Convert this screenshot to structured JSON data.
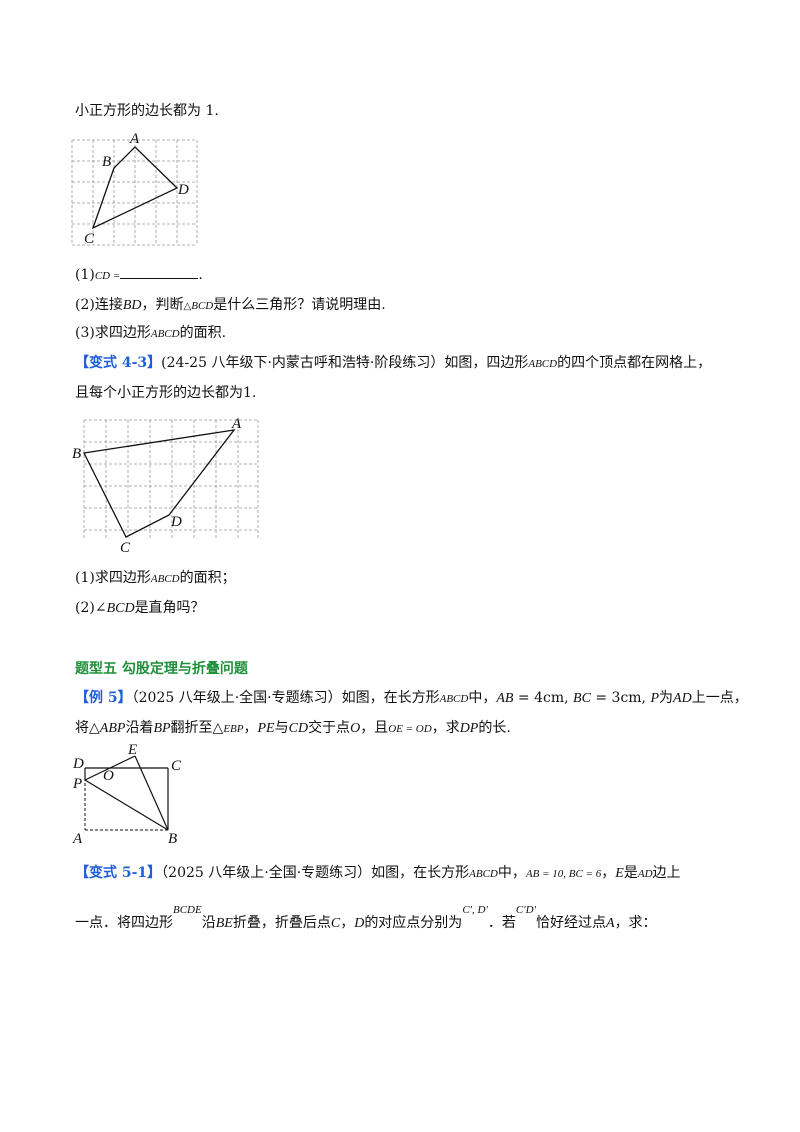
{
  "intro_line": "小正方形的边长都为 1.",
  "fig1": {
    "A": "A",
    "B": "B",
    "C": "C",
    "D": "D"
  },
  "q4_2": {
    "p1_prefix": "(1)",
    "p1_math": "CD =",
    "p1_end": ".",
    "p2_a": "(2)连接",
    "p2_math1": "BD",
    "p2_b": "，判断",
    "p2_tri": "△",
    "p2_math2": "BCD",
    "p2_c": "是什么三角形？请说明理由.",
    "p3_a": "(3)求四边形",
    "p3_math": "ABCD",
    "p3_b": "的面积."
  },
  "v43": {
    "tag": "【变式 4-3】",
    "source": "(24-25 八年级下·内蒙古呼和浩特·阶段练习）如图，四边形",
    "math": "ABCD",
    "rest": "的四个顶点都在网格上，",
    "line2": "且每个小正方形的边长都为1.",
    "fig": {
      "A": "A",
      "B": "B",
      "C": "C",
      "D": "D"
    },
    "q1_a": "(1)求四边形",
    "q1_math": "ABCD",
    "q1_b": "的面积；",
    "q2_a": "(2)∠",
    "q2_math": "BCD",
    "q2_b": "是直角吗？"
  },
  "section5": {
    "title": "题型五    勾股定理与折叠问题"
  },
  "ex5": {
    "tag": "【例 5】",
    "l1_a": "（2025 八年级上·全国·专题练习）如图，在长方形",
    "l1_m1": "ABCD",
    "l1_b": "中，",
    "l1_m2": "AB",
    "l1_m2b": " = 4cm, ",
    "l1_m3": "BC",
    "l1_m3b": " = 3cm, ",
    "l1_m4": "P",
    "l1_c": "为",
    "l1_m5": "AD",
    "l1_d": "上一点，",
    "l2_a": "将△",
    "l2_m1": "ABP",
    "l2_b": "沿着",
    "l2_m2": "BP",
    "l2_c": "翻折至△",
    "l2_m3": "EBP",
    "l2_d": "，",
    "l2_m4": "PE",
    "l2_e": "与",
    "l2_m5": "CD",
    "l2_f": "交于点",
    "l2_m6": "O",
    "l2_g": "，且",
    "l2_m7": "OE",
    "l2_m7b": " = ",
    "l2_m8": "OD",
    "l2_h": "，求",
    "l2_m9": "DP",
    "l2_i": "的长.",
    "fig": {
      "D": "D",
      "E": "E",
      "O": "O",
      "C": "C",
      "P": "P",
      "A": "A",
      "B": "B"
    }
  },
  "v51": {
    "tag": "【变式 5-1】",
    "l1_a": "（2025 八年级上·全国·专题练习）如图，在长方形",
    "l1_m1": "ABCD",
    "l1_b": "中，",
    "l1_m2": "AB",
    "l1_m2b": " = 10, ",
    "l1_m3": "BC",
    "l1_m3b": " = 6",
    "l1_c": "，",
    "l1_m4": "E",
    "l1_d": "是",
    "l1_m5": "AD",
    "l1_e": "边上",
    "l2_a": "一点．将四边形",
    "l2_sup1": "BCDE",
    "l2_b": "沿",
    "l2_m1": "BE",
    "l2_c": "折叠，折叠后点",
    "l2_m2": "C",
    "l2_d": "，",
    "l2_m3": "D",
    "l2_e": "的对应点分别为",
    "l2_sup2": "C′, D′",
    "l2_f": "．若",
    "l2_sup3": "C′D′",
    "l2_g": "恰好经过点",
    "l2_m4": "A",
    "l2_h": "，求："
  }
}
